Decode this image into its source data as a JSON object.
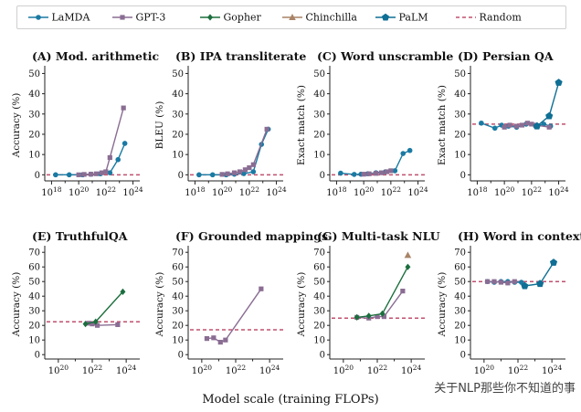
{
  "legend": {
    "items": [
      {
        "name": "LaMDA",
        "color": "#1a7aa3",
        "marker": "circle",
        "style": "solid"
      },
      {
        "name": "GPT-3",
        "color": "#8a6d93",
        "marker": "square",
        "style": "solid"
      },
      {
        "name": "Gopher",
        "color": "#1b6e3d",
        "marker": "diamond",
        "style": "solid"
      },
      {
        "name": "Chinchilla",
        "color": "#a98467",
        "marker": "triangle",
        "style": "solid"
      },
      {
        "name": "PaLM",
        "color": "#0f6f94",
        "marker": "pentagon",
        "style": "solid"
      },
      {
        "name": "Random",
        "color": "#c0506e",
        "marker": "none",
        "style": "dashed"
      }
    ]
  },
  "xlabel_shared": "Model scale (training FLOPs)",
  "watermark": "关于NLP那些你不知道的事",
  "chart_data": [
    {
      "id": "A",
      "type": "line",
      "title": "(A) Mod. arithmetic",
      "ylabel": "Accuracy (%)",
      "xlim": [
        17.5,
        24.5
      ],
      "ylim": [
        -3,
        52
      ],
      "yticks": [
        0,
        10,
        20,
        30,
        40,
        50
      ],
      "xticks": [
        18,
        20,
        22,
        24
      ],
      "random": 0,
      "series": [
        {
          "name": "LaMDA",
          "x": [
            18.3,
            19.3,
            20.3,
            20.9,
            21.6,
            22.3,
            22.9,
            23.4
          ],
          "y": [
            0,
            0,
            0,
            0.3,
            0.5,
            1,
            7.5,
            15.5
          ]
        },
        {
          "name": "GPT-3",
          "x": [
            20.0,
            20.4,
            20.9,
            21.3,
            21.7,
            22.0,
            22.3,
            23.3
          ],
          "y": [
            0,
            0.2,
            0.3,
            0.5,
            1,
            1.5,
            8.5,
            33
          ]
        }
      ]
    },
    {
      "id": "B",
      "type": "line",
      "title": "(B) IPA transliterate",
      "ylabel": "BLEU (%)",
      "xlim": [
        17.5,
        24.5
      ],
      "ylim": [
        -3,
        52
      ],
      "yticks": [
        0,
        10,
        20,
        30,
        40,
        50
      ],
      "xticks": [
        18,
        20,
        22,
        24
      ],
      "random": 0,
      "series": [
        {
          "name": "LaMDA",
          "x": [
            18.3,
            19.3,
            20.3,
            20.9,
            21.6,
            22.3,
            22.9,
            23.4
          ],
          "y": [
            0,
            0,
            0,
            0.3,
            0.6,
            1.5,
            15,
            22.5
          ]
        },
        {
          "name": "GPT-3",
          "x": [
            20.0,
            20.4,
            20.9,
            21.3,
            21.7,
            22.0,
            22.3,
            23.3
          ],
          "y": [
            0.2,
            0.5,
            1,
            1.5,
            2.5,
            3.5,
            5,
            22.5
          ]
        }
      ]
    },
    {
      "id": "C",
      "type": "line",
      "title": "(C) Word unscramble",
      "ylabel": "Exact match (%)",
      "xlim": [
        17.5,
        24.5
      ],
      "ylim": [
        -3,
        52
      ],
      "yticks": [
        0,
        10,
        20,
        30,
        40,
        50
      ],
      "xticks": [
        18,
        20,
        22,
        24
      ],
      "random": 0,
      "series": [
        {
          "name": "LaMDA",
          "x": [
            18.3,
            19.3,
            19.8,
            20.3,
            20.9,
            21.6,
            22.3,
            22.9,
            23.4
          ],
          "y": [
            0.8,
            0.2,
            0.3,
            0.5,
            1,
            1.5,
            2,
            10.5,
            12
          ]
        },
        {
          "name": "GPT-3",
          "x": [
            20.0,
            20.4,
            20.9,
            21.3,
            21.7,
            22.0
          ],
          "y": [
            0.3,
            0.5,
            0.7,
            1,
            1.5,
            2
          ]
        }
      ]
    },
    {
      "id": "D",
      "type": "line",
      "title": "(D) Persian QA",
      "ylabel": "Exact match (%)",
      "xlim": [
        17.5,
        24.5
      ],
      "ylim": [
        -3,
        52
      ],
      "yticks": [
        0,
        10,
        20,
        30,
        40,
        50
      ],
      "xticks": [
        18,
        20,
        22,
        24
      ],
      "random": 25,
      "series": [
        {
          "name": "LaMDA",
          "x": [
            18.3,
            19.3,
            19.8,
            20.3,
            20.9,
            21.6,
            22.3,
            22.9,
            23.4
          ],
          "y": [
            25.5,
            23,
            24.5,
            24,
            23.5,
            25,
            24,
            25,
            24
          ]
        },
        {
          "name": "GPT-3",
          "x": [
            20.0,
            20.4,
            20.9,
            21.3,
            21.7,
            22.0,
            22.3,
            23.3
          ],
          "y": [
            23.5,
            24.5,
            24,
            24.5,
            25.5,
            25,
            24.5,
            23.5
          ]
        },
        {
          "name": "PaLM",
          "x": [
            22.4,
            23.3,
            24.0
          ],
          "y": [
            24,
            29,
            45.5
          ]
        }
      ]
    },
    {
      "id": "E",
      "type": "line",
      "title": "(E) TruthfulQA",
      "ylabel": "Accuracy (%)",
      "xlim": [
        19.2,
        24.8
      ],
      "ylim": [
        -3,
        72
      ],
      "yticks": [
        0,
        10,
        20,
        30,
        40,
        50,
        60,
        70
      ],
      "xticks": [
        20,
        22,
        24
      ],
      "random": 22.5,
      "series": [
        {
          "name": "GPT-3",
          "x": [
            21.8,
            22.0,
            22.3,
            23.5
          ],
          "y": [
            21.5,
            21,
            20,
            20.5
          ]
        },
        {
          "name": "Gopher",
          "x": [
            21.6,
            22.2,
            23.8
          ],
          "y": [
            21,
            22.5,
            43
          ]
        }
      ]
    },
    {
      "id": "F",
      "type": "line",
      "title": "(F) Grounded mappings",
      "ylabel": "Accuracy (%)",
      "xlim": [
        19.2,
        24.8
      ],
      "ylim": [
        -3,
        72
      ],
      "yticks": [
        0,
        10,
        20,
        30,
        40,
        50,
        60,
        70
      ],
      "xticks": [
        20,
        22,
        24
      ],
      "random": 17,
      "series": [
        {
          "name": "GPT-3",
          "x": [
            20.3,
            20.7,
            21.1,
            21.4,
            23.5
          ],
          "y": [
            11,
            11.5,
            8.5,
            10,
            45
          ]
        }
      ]
    },
    {
      "id": "G",
      "type": "line",
      "title": "(G) Multi-task NLU",
      "ylabel": "Accuracy (%)",
      "xlim": [
        19.2,
        24.8
      ],
      "ylim": [
        -3,
        72
      ],
      "yticks": [
        0,
        10,
        20,
        30,
        40,
        50,
        60,
        70
      ],
      "xticks": [
        20,
        22,
        24
      ],
      "random": 25,
      "series": [
        {
          "name": "GPT-3",
          "x": [
            20.8,
            21.5,
            22.0,
            22.4,
            23.5
          ],
          "y": [
            25.5,
            25,
            26,
            26,
            43.5
          ]
        },
        {
          "name": "Gopher",
          "x": [
            20.8,
            21.5,
            22.3,
            23.8
          ],
          "y": [
            25.5,
            26.5,
            28,
            60
          ]
        },
        {
          "name": "Chinchilla",
          "x": [
            23.8
          ],
          "y": [
            68
          ]
        }
      ]
    },
    {
      "id": "H",
      "type": "line",
      "title": "(H) Word in context",
      "ylabel": "Accuracy (%)",
      "xlim": [
        19.2,
        24.8
      ],
      "ylim": [
        -3,
        72
      ],
      "yticks": [
        0,
        10,
        20,
        30,
        40,
        50,
        60,
        70
      ],
      "xticks": [
        20,
        22,
        24
      ],
      "random": 50,
      "series": [
        {
          "name": "LaMDA",
          "x": [
            20.2,
            20.6,
            21.0,
            21.4,
            21.8,
            22.2
          ],
          "y": [
            50,
            49.5,
            50,
            50,
            49.5,
            49.5
          ]
        },
        {
          "name": "GPT-3",
          "x": [
            20.2,
            20.6,
            21.0,
            21.4,
            21.8
          ],
          "y": [
            50,
            50,
            49.5,
            49,
            50
          ]
        },
        {
          "name": "PaLM",
          "x": [
            22.4,
            23.3,
            24.1
          ],
          "y": [
            47,
            48.5,
            63
          ]
        }
      ]
    }
  ]
}
